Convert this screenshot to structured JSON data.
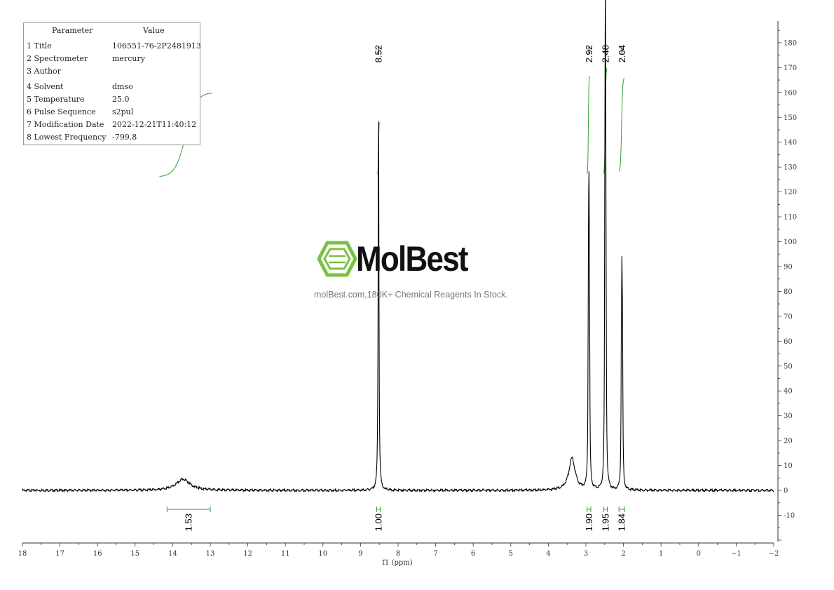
{
  "parameters": {
    "header": {
      "parameter": "Parameter",
      "value": "Value"
    },
    "rows": [
      {
        "key": "1 Title",
        "value": "106551-76-2P2481913"
      },
      {
        "key": "2 Spectrometer",
        "value": "mercury"
      },
      {
        "key": "3 Author",
        "value": ""
      },
      {
        "key": "4 Solvent",
        "value": "dmso"
      },
      {
        "key": "5 Temperature",
        "value": "25.0"
      },
      {
        "key": "6 Pulse Sequence",
        "value": "s2pul"
      },
      {
        "key": "7 Modification Date",
        "value": "2022-12-21T11:40:12"
      },
      {
        "key": "8 Lowest Frequency",
        "value": "-799.8"
      }
    ]
  },
  "watermark": {
    "brand": "MolBest",
    "tagline": "molBest.com,180K+ Chemical Reagents In Stock.",
    "color": "#7ac143"
  },
  "chart_data": {
    "type": "line",
    "title": "",
    "xlabel": "f1 (ppm)",
    "ylabel": "",
    "xlim": [
      18,
      -2
    ],
    "ylim": [
      -20,
      190
    ],
    "x_ticks": [
      "18",
      "17",
      "16",
      "15",
      "14",
      "13",
      "12",
      "11",
      "10",
      "9",
      "8",
      "7",
      "6",
      "5",
      "4",
      "3",
      "2",
      "1",
      "0",
      "−1",
      "−2"
    ],
    "y_ticks": [
      "-10",
      "0",
      "10",
      "20",
      "30",
      "40",
      "50",
      "60",
      "70",
      "80",
      "90",
      "100",
      "110",
      "120",
      "130",
      "140",
      "150",
      "160",
      "170",
      "180"
    ],
    "peaks": [
      {
        "ppm": 13.72,
        "height": 4.5,
        "width": 0.22
      },
      {
        "ppm": 8.52,
        "height": 160,
        "width": 0.012
      },
      {
        "ppm": 3.37,
        "height": 13,
        "width": 0.1
      },
      {
        "ppm": 2.935,
        "height": 60,
        "width": 0.01
      },
      {
        "ppm": 2.92,
        "height": 101,
        "width": 0.01
      },
      {
        "ppm": 2.905,
        "height": 55,
        "width": 0.01
      },
      {
        "ppm": 2.495,
        "height": 93,
        "width": 0.01
      },
      {
        "ppm": 2.48,
        "height": 169,
        "width": 0.01
      },
      {
        "ppm": 2.465,
        "height": 56,
        "width": 0.01
      },
      {
        "ppm": 2.055,
        "height": 50,
        "width": 0.01
      },
      {
        "ppm": 2.04,
        "height": 65,
        "width": 0.01
      },
      {
        "ppm": 2.025,
        "height": 48,
        "width": 0.01
      }
    ],
    "peak_labels": [
      "8.52",
      "2.92",
      "2.48",
      "2.04"
    ],
    "peak_label_ppm": [
      8.52,
      2.92,
      2.48,
      2.04
    ],
    "integrals": [
      {
        "value": "1.53",
        "from": 14.15,
        "to": 13.0
      },
      {
        "value": "1.00",
        "from": 8.57,
        "to": 8.47
      },
      {
        "value": "1.90",
        "from": 2.97,
        "to": 2.87
      },
      {
        "value": "1.95",
        "from": 2.53,
        "to": 2.43
      },
      {
        "value": "1.84",
        "from": 2.12,
        "to": 1.97
      }
    ],
    "integral_curves": [
      {
        "from": 14.35,
        "to": 12.95,
        "y_start": 126,
        "y_end": 160
      },
      {
        "from": 8.55,
        "to": 8.49,
        "y_start": 127,
        "y_end": 148
      },
      {
        "from": 2.97,
        "to": 2.9,
        "y_start": 127,
        "y_end": 167
      },
      {
        "from": 2.53,
        "to": 2.44,
        "y_start": 127,
        "y_end": 170
      },
      {
        "from": 2.12,
        "to": 1.98,
        "y_start": 128,
        "y_end": 166
      }
    ],
    "colors": {
      "spectrum": "#000000",
      "integral": "#2ca02c",
      "axis": "#333333"
    }
  }
}
